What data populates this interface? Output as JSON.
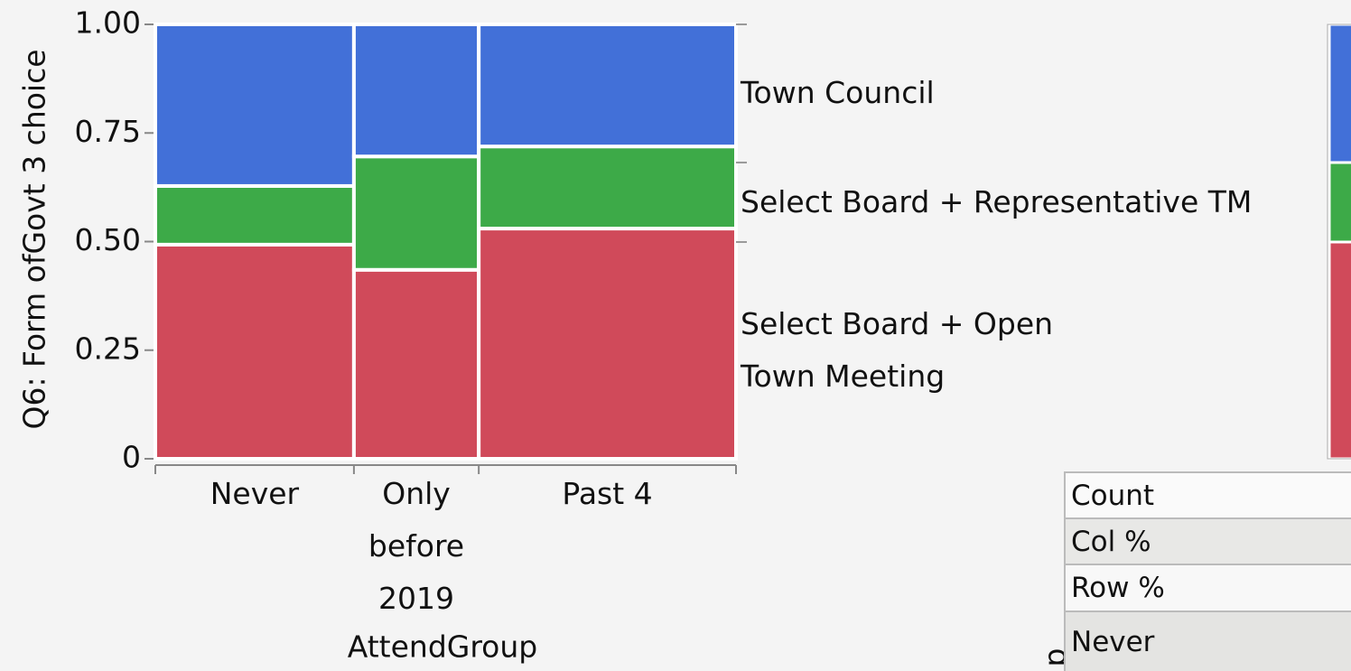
{
  "chart_data": {
    "type": "mosaic",
    "y_label": "Q6: Form ofGovt 3 choice",
    "x_label": "AttendGroup",
    "categories": [
      "Never",
      "Only before 2019",
      "Past 4"
    ],
    "widths": [
      0.342,
      0.215,
      0.443
    ],
    "series": [
      {
        "name": "Select Board + Open Town Meeting",
        "color": "#d04a5a",
        "values": [
          0.493,
          0.435,
          0.53
        ],
        "total": 0.499
      },
      {
        "name": "Select Board + Representative TM",
        "color": "#3daa48",
        "values": [
          0.135,
          0.261,
          0.189
        ],
        "total": 0.183
      },
      {
        "name": "Town Council",
        "color": "#4270d8",
        "values": [
          0.372,
          0.304,
          0.281
        ],
        "total": 0.318
      }
    ],
    "ylim": [
      0,
      1
    ],
    "yticks": [
      0,
      0.25,
      {
        "value": 0.5,
        "label": "0.50"
      },
      0.75,
      {
        "value": 1,
        "label": "1.00"
      }
    ]
  },
  "table": {
    "rows": [
      "Count",
      "Col %",
      "Row %",
      "Never"
    ],
    "side_label": "p"
  }
}
